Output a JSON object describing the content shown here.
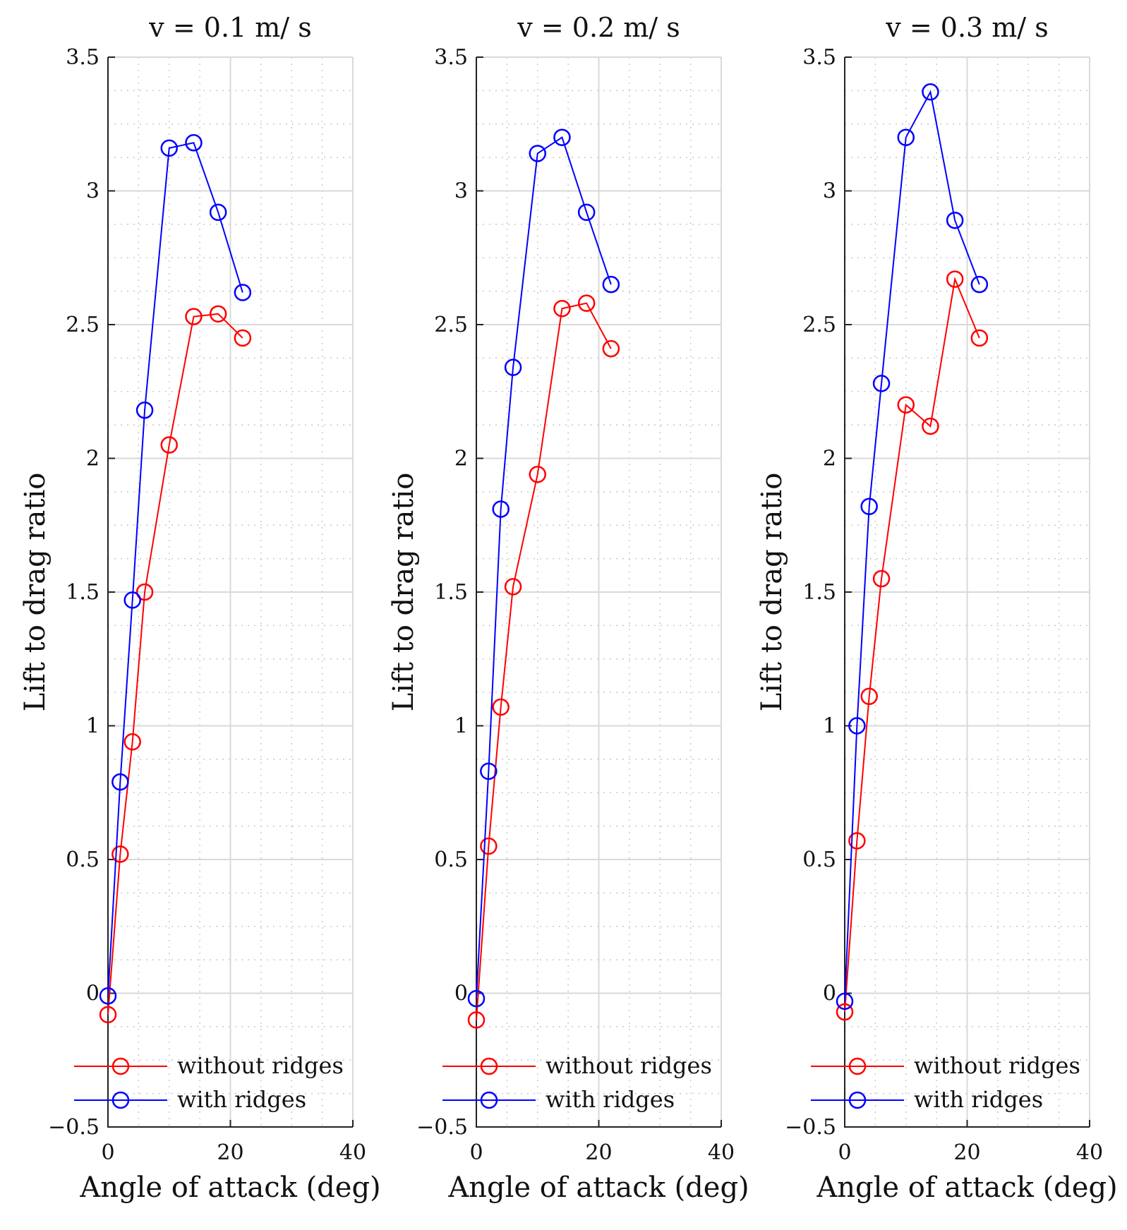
{
  "chart_data": [
    {
      "type": "line",
      "title": "v = 0.1 m/ s",
      "xlabel": "Angle of attack (deg)",
      "ylabel": "Lift to drag ratio",
      "xlim": [
        0,
        40
      ],
      "ylim": [
        -0.5,
        3.5
      ],
      "xticks": [
        0,
        20,
        40
      ],
      "yticks": [
        -0.5,
        0,
        0.5,
        1,
        1.5,
        2,
        2.5,
        3,
        3.5
      ],
      "xtick_labels": [
        "0",
        "20",
        "40"
      ],
      "ytick_labels": [
        "−0.5",
        "0",
        "0.5",
        "1",
        "1.5",
        "2",
        "2.5",
        "3",
        "3.5"
      ],
      "grid": true,
      "legend_position": "bottom-right",
      "series": [
        {
          "name": "without ridges",
          "color": "#ff0000",
          "marker": "circle",
          "x": [
            0,
            2,
            4,
            6,
            10,
            14,
            18,
            22
          ],
          "y": [
            -0.08,
            0.52,
            0.94,
            1.5,
            2.05,
            2.53,
            2.54,
            2.45
          ]
        },
        {
          "name": "with ridges",
          "color": "#0000ff",
          "marker": "circle",
          "x": [
            0,
            2,
            4,
            6,
            10,
            14,
            18,
            22
          ],
          "y": [
            -0.01,
            0.79,
            1.47,
            2.18,
            3.16,
            3.18,
            2.92,
            2.62
          ]
        }
      ]
    },
    {
      "type": "line",
      "title": "v = 0.2 m/ s",
      "xlabel": "Angle of attack (deg)",
      "ylabel": "Lift to drag ratio",
      "xlim": [
        0,
        40
      ],
      "ylim": [
        -0.5,
        3.5
      ],
      "xticks": [
        0,
        20,
        40
      ],
      "yticks": [
        -0.5,
        0,
        0.5,
        1,
        1.5,
        2,
        2.5,
        3,
        3.5
      ],
      "xtick_labels": [
        "0",
        "20",
        "40"
      ],
      "ytick_labels": [
        "−0.5",
        "0",
        "0.5",
        "1",
        "1.5",
        "2",
        "2.5",
        "3",
        "3.5"
      ],
      "grid": true,
      "legend_position": "bottom-right",
      "series": [
        {
          "name": "without ridges",
          "color": "#ff0000",
          "marker": "circle",
          "x": [
            0,
            2,
            4,
            6,
            10,
            14,
            18,
            22
          ],
          "y": [
            -0.1,
            0.55,
            1.07,
            1.52,
            1.94,
            2.56,
            2.58,
            2.41
          ]
        },
        {
          "name": "with ridges",
          "color": "#0000ff",
          "marker": "circle",
          "x": [
            0,
            2,
            4,
            6,
            10,
            14,
            18,
            22
          ],
          "y": [
            -0.02,
            0.83,
            1.81,
            2.34,
            3.14,
            3.2,
            2.92,
            2.65
          ]
        }
      ]
    },
    {
      "type": "line",
      "title": "v = 0.3 m/ s",
      "xlabel": "Angle of attack (deg)",
      "ylabel": "Lift to drag ratio",
      "xlim": [
        0,
        40
      ],
      "ylim": [
        -0.5,
        3.5
      ],
      "xticks": [
        0,
        20,
        40
      ],
      "yticks": [
        -0.5,
        0,
        0.5,
        1,
        1.5,
        2,
        2.5,
        3,
        3.5
      ],
      "xtick_labels": [
        "0",
        "20",
        "40"
      ],
      "ytick_labels": [
        "−0.5",
        "0",
        "0.5",
        "1",
        "1.5",
        "2",
        "2.5",
        "3",
        "3.5"
      ],
      "grid": true,
      "legend_position": "bottom-right",
      "series": [
        {
          "name": "without ridges",
          "color": "#ff0000",
          "marker": "circle",
          "x": [
            0,
            2,
            4,
            6,
            10,
            14,
            18,
            22
          ],
          "y": [
            -0.07,
            0.57,
            1.11,
            1.55,
            2.2,
            2.12,
            2.67,
            2.45
          ]
        },
        {
          "name": "with ridges",
          "color": "#0000ff",
          "marker": "circle",
          "x": [
            0,
            2,
            4,
            6,
            10,
            14,
            18,
            22
          ],
          "y": [
            -0.03,
            1.0,
            1.82,
            2.28,
            3.2,
            3.37,
            2.89,
            2.65
          ]
        }
      ]
    }
  ]
}
